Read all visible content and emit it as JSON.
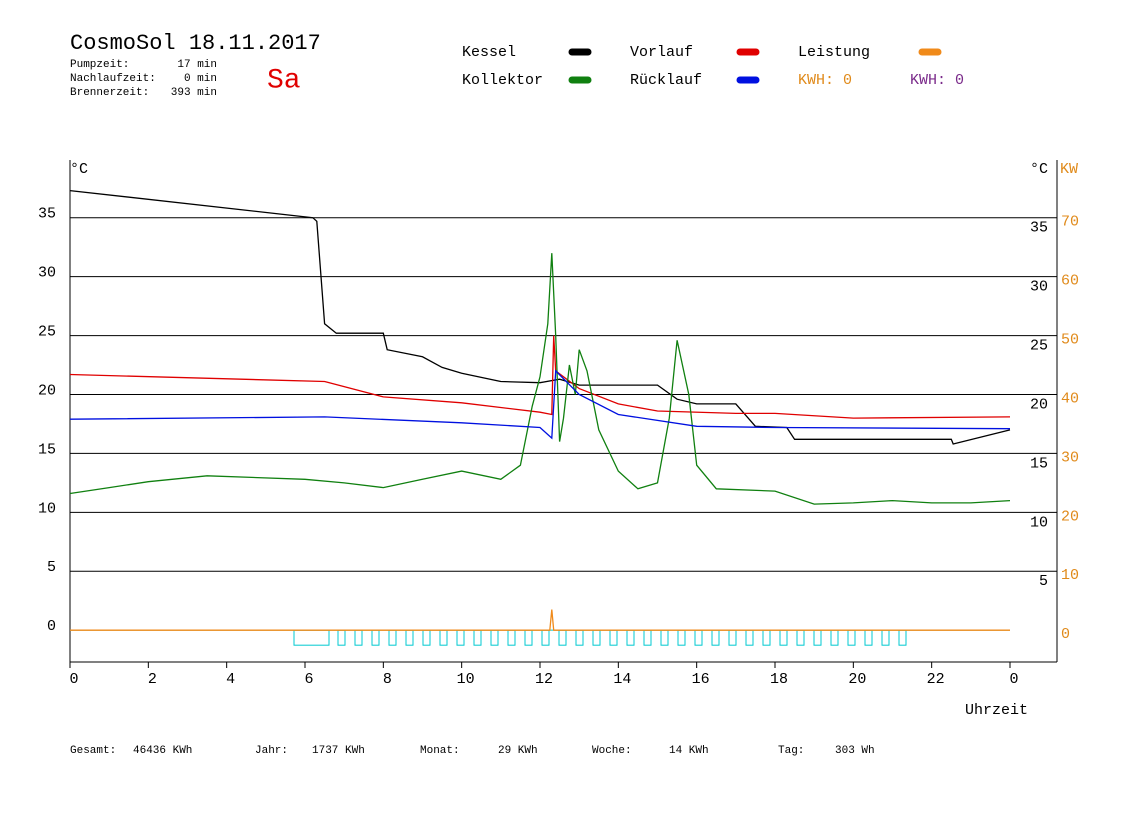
{
  "header": {
    "title": "CosmoSol 18.11.2017",
    "day": "Sa",
    "stats": [
      {
        "label": "Pumpzeit:",
        "value": "17 min"
      },
      {
        "label": "Nachlaufzeit:",
        "value": "0 min"
      },
      {
        "label": "Brennerzeit:",
        "value": "393 min"
      }
    ]
  },
  "kwh": [
    {
      "label": "KWH: 0",
      "color": "#e08a1a"
    },
    {
      "label": "KWH: 0",
      "color": "#7a2a8a"
    }
  ],
  "footer": [
    {
      "label": "Gesamt:",
      "value": "46436 KWh"
    },
    {
      "label": "Jahr:",
      "value": "1737 KWh"
    },
    {
      "label": "Monat:",
      "value": "29 KWh"
    },
    {
      "label": "Woche:",
      "value": "14 KWh"
    },
    {
      "label": "Tag:",
      "value": "303 Wh"
    }
  ],
  "chart_data": {
    "type": "line",
    "y_label": "°C",
    "y2_label_c": "°C",
    "y2_label": "KW",
    "x_label": "Uhrzeit",
    "xlim": [
      0,
      25.2
    ],
    "xticks": [
      0,
      2,
      4,
      6,
      8,
      10,
      12,
      14,
      16,
      18,
      20,
      22,
      {
        "value": 24,
        "label": "0"
      }
    ],
    "ylim": [
      -2.7,
      39.9
    ],
    "yticks": [
      0,
      5,
      10,
      15,
      20,
      25,
      30,
      35
    ],
    "y_right_ticks": [
      5,
      10,
      15,
      20,
      25,
      30,
      35
    ],
    "y2lim": [
      -5.4,
      79.8
    ],
    "y2ticks": [
      0,
      10,
      20,
      30,
      40,
      50,
      60,
      70
    ],
    "grid": true,
    "series": [
      {
        "name": "Kessel",
        "color": "#000000",
        "x": [
          0,
          6.2,
          6.3,
          6.5,
          6.8,
          8.0,
          8.1,
          9.0,
          9.5,
          10,
          11,
          12,
          12.5,
          13,
          15,
          15.5,
          16,
          17,
          17.5,
          18.3,
          18.5,
          22.5,
          22.55,
          24
        ],
        "values": [
          37.3,
          35,
          34.7,
          26,
          25.2,
          25.2,
          23.8,
          23.2,
          22.3,
          21.8,
          21.1,
          21,
          21.3,
          20.8,
          20.8,
          19.6,
          19.2,
          19.2,
          17.3,
          17.2,
          16.2,
          16.2,
          15.8,
          17
        ]
      },
      {
        "name": "Vorlauf",
        "color": "#e00000",
        "x": [
          0,
          6.5,
          8,
          10,
          12,
          12.3,
          12.35,
          12.4,
          13,
          14,
          15,
          17,
          18,
          20,
          24
        ],
        "values": [
          21.7,
          21.1,
          19.8,
          19.3,
          18.5,
          18.3,
          25,
          22,
          20.5,
          19.2,
          18.6,
          18.4,
          18.4,
          18.0,
          18.1
        ]
      },
      {
        "name": "Leistung",
        "color": "#f08a1a",
        "axis": "y2",
        "x": [
          0,
          12.25,
          12.3,
          12.35,
          24
        ],
        "values": [
          0,
          0,
          3.5,
          0,
          0
        ]
      },
      {
        "name": "Kollektor",
        "color": "#108010",
        "x": [
          0,
          1,
          2,
          3.5,
          6,
          7,
          8,
          9,
          10,
          11,
          11.5,
          11.8,
          12,
          12.2,
          12.3,
          12.4,
          12.5,
          12.6,
          12.75,
          12.9,
          13,
          13.2,
          13.5,
          14,
          14.5,
          15,
          15.3,
          15.5,
          15.8,
          16,
          16.5,
          18,
          19,
          20,
          21,
          22,
          23,
          24
        ],
        "values": [
          11.6,
          12.1,
          12.6,
          13.1,
          12.8,
          12.5,
          12.1,
          12.8,
          13.5,
          12.8,
          14,
          19,
          21.5,
          26,
          32,
          25,
          16,
          18,
          22.5,
          20,
          23.8,
          22,
          17,
          13.5,
          12,
          12.5,
          18,
          24.6,
          20,
          14,
          12,
          11.8,
          10.7,
          10.8,
          11,
          10.8,
          10.8,
          11.0
        ]
      },
      {
        "name": "Rücklauf",
        "color": "#0010e0",
        "x": [
          0,
          6.5,
          10,
          12,
          12.3,
          12.4,
          13,
          14,
          16,
          18,
          24
        ],
        "values": [
          17.9,
          18.1,
          17.6,
          17.2,
          16.3,
          22,
          20,
          18.3,
          17.3,
          17.2,
          17.1
        ]
      }
    ]
  }
}
